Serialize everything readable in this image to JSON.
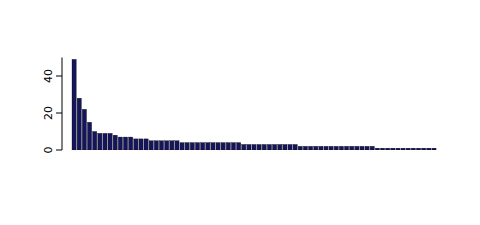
{
  "chart_data": {
    "type": "bar",
    "categories": [
      null,
      null,
      null,
      null,
      null,
      null,
      null,
      null,
      null,
      null,
      null,
      null,
      null,
      null,
      null,
      null,
      null,
      null,
      null,
      null,
      null,
      null,
      null,
      null,
      null,
      null,
      null,
      null,
      null,
      null,
      null,
      null,
      null,
      null,
      null,
      null,
      null,
      null,
      null,
      null,
      null,
      null,
      null,
      null,
      null,
      null,
      null,
      null,
      null,
      null,
      null,
      null,
      null,
      null,
      null,
      null,
      null,
      null,
      null,
      null,
      null,
      null,
      null,
      null,
      null,
      null,
      null,
      null,
      null,
      null,
      null
    ],
    "values": [
      49,
      28,
      22,
      15,
      10,
      9,
      9,
      9,
      8,
      7,
      7,
      7,
      6,
      6,
      6,
      5,
      5,
      5,
      5,
      5,
      5,
      4,
      4,
      4,
      4,
      4,
      4,
      4,
      4,
      4,
      4,
      4,
      4,
      3,
      3,
      3,
      3,
      3,
      3,
      3,
      3,
      3,
      3,
      3,
      2,
      2,
      2,
      2,
      2,
      2,
      2,
      2,
      2,
      2,
      2,
      2,
      2,
      2,
      2,
      1,
      1,
      1,
      1,
      1,
      1,
      1,
      1,
      1,
      1,
      1,
      1
    ],
    "color": "#15155c",
    "ylim": [
      0,
      50
    ],
    "yticks": [
      0,
      20,
      40
    ],
    "tick_labels": "y"
  }
}
